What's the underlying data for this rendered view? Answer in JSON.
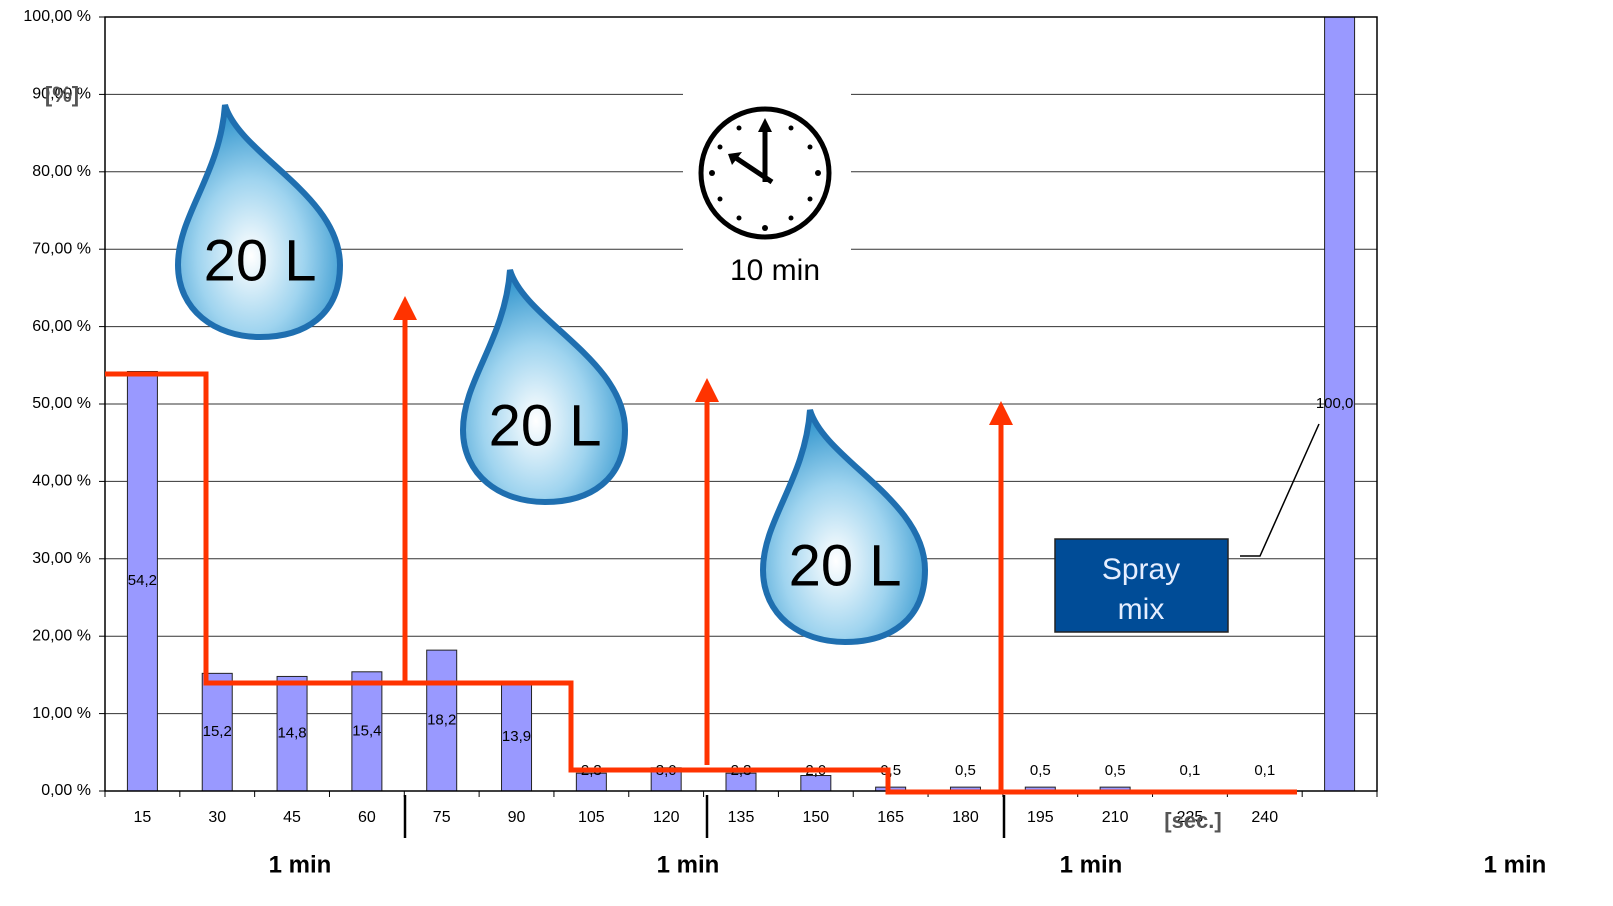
{
  "chart_data": {
    "type": "bar",
    "y_label": "[%]",
    "x_label": "[sec.]",
    "categories": [
      "15",
      "30",
      "45",
      "60",
      "75",
      "90",
      "105",
      "120",
      "135",
      "150",
      "165",
      "180",
      "195",
      "210",
      "225",
      "240",
      null
    ],
    "values": [
      54.2,
      15.2,
      14.8,
      15.4,
      18.2,
      13.9,
      2.3,
      3.0,
      2.3,
      2.0,
      0.5,
      0.5,
      0.5,
      0.5,
      0.1,
      0.1,
      100.0
    ],
    "value_labels": [
      "54,2",
      "15,2",
      "14,8",
      "15,4",
      "18,2",
      "13,9",
      "2,3",
      "3,0",
      "2,3",
      "2,0",
      "0,5",
      "0,5",
      "0,5",
      "0,5",
      "0,1",
      "0,1",
      "100,0"
    ],
    "color": "#9999ff",
    "ylim": [
      0,
      100
    ],
    "yticks": [
      {
        "value": 0,
        "label": "0,00 %"
      },
      {
        "value": 10,
        "label": "10,00 %"
      },
      {
        "value": 20,
        "label": "20,00 %"
      },
      {
        "value": 30,
        "label": "30,00 %"
      },
      {
        "value": 40,
        "label": "40,00 %"
      },
      {
        "value": 50,
        "label": "50,00 %"
      },
      {
        "value": 60,
        "label": "60,00 %"
      },
      {
        "value": 70,
        "label": "70,00 %"
      },
      {
        "value": 80,
        "label": "80,00 %"
      },
      {
        "value": 90,
        "label": "90,00 %"
      },
      {
        "value": 100,
        "label": "100,00 %"
      }
    ],
    "grid": true,
    "annotations": {
      "drops": [
        "20 L",
        "20 L",
        "20 L"
      ],
      "clock": "10 min",
      "box": [
        "Spray",
        "mix"
      ],
      "periods": [
        "1 min",
        "1 min",
        "1 min",
        "1 min"
      ]
    }
  }
}
